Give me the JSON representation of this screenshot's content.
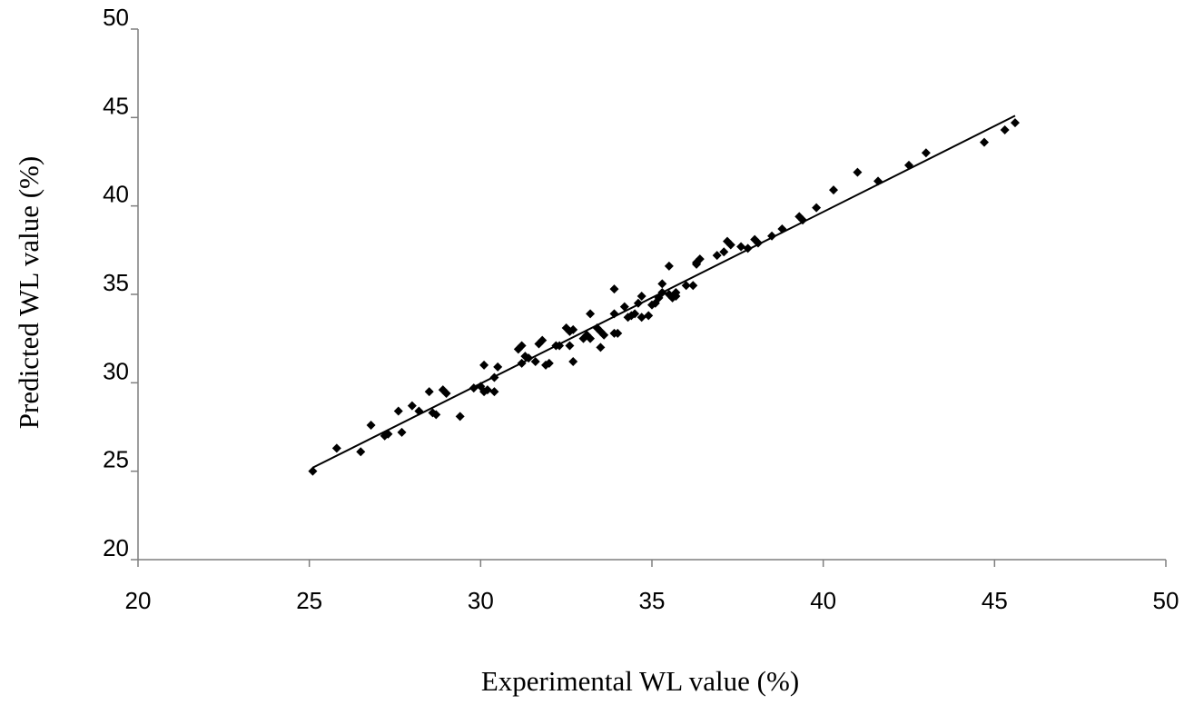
{
  "chart_data": {
    "type": "scatter",
    "title": "",
    "xlabel": "Experimental WL value (%)",
    "ylabel": "Predicted WL value (%)",
    "xlim": [
      20,
      50
    ],
    "ylim": [
      20,
      50
    ],
    "xticks": [
      "20",
      "25",
      "30",
      "35",
      "40",
      "45",
      "50"
    ],
    "yticks": [
      "20",
      "25",
      "30",
      "35",
      "40",
      "45",
      "50"
    ],
    "grid": false,
    "legend": "none",
    "marker": "diamond",
    "point_color": "#000000",
    "trendline": {
      "x": [
        25.1,
        45.6
      ],
      "y": [
        25.2,
        45.1
      ]
    },
    "points": [
      [
        25.1,
        25.0
      ],
      [
        25.8,
        26.3
      ],
      [
        26.5,
        26.1
      ],
      [
        26.8,
        27.6
      ],
      [
        27.2,
        27.0
      ],
      [
        27.3,
        27.1
      ],
      [
        27.6,
        28.4
      ],
      [
        27.7,
        27.2
      ],
      [
        28.0,
        28.7
      ],
      [
        28.2,
        28.4
      ],
      [
        28.5,
        29.5
      ],
      [
        28.6,
        28.3
      ],
      [
        28.7,
        28.2
      ],
      [
        28.9,
        29.6
      ],
      [
        29.0,
        29.4
      ],
      [
        29.4,
        28.1
      ],
      [
        29.8,
        29.7
      ],
      [
        30.0,
        29.8
      ],
      [
        30.1,
        31.0
      ],
      [
        30.1,
        29.5
      ],
      [
        30.2,
        29.6
      ],
      [
        30.4,
        30.3
      ],
      [
        30.4,
        29.5
      ],
      [
        30.5,
        30.9
      ],
      [
        31.1,
        31.9
      ],
      [
        31.2,
        32.1
      ],
      [
        31.2,
        31.1
      ],
      [
        31.3,
        31.5
      ],
      [
        31.4,
        31.4
      ],
      [
        31.6,
        31.2
      ],
      [
        31.7,
        32.2
      ],
      [
        31.8,
        32.4
      ],
      [
        31.9,
        31.0
      ],
      [
        32.0,
        31.1
      ],
      [
        32.2,
        32.1
      ],
      [
        32.3,
        32.1
      ],
      [
        32.5,
        33.1
      ],
      [
        32.6,
        32.1
      ],
      [
        32.6,
        32.9
      ],
      [
        32.7,
        33.0
      ],
      [
        32.7,
        31.2
      ],
      [
        33.0,
        32.5
      ],
      [
        33.1,
        32.7
      ],
      [
        33.2,
        32.5
      ],
      [
        33.2,
        33.9
      ],
      [
        33.4,
        33.1
      ],
      [
        33.5,
        32.0
      ],
      [
        33.5,
        32.9
      ],
      [
        33.6,
        32.7
      ],
      [
        33.9,
        33.9
      ],
      [
        33.9,
        32.8
      ],
      [
        34.0,
        32.8
      ],
      [
        33.9,
        35.3
      ],
      [
        34.2,
        34.3
      ],
      [
        34.3,
        33.7
      ],
      [
        34.4,
        33.8
      ],
      [
        34.5,
        33.9
      ],
      [
        34.6,
        34.5
      ],
      [
        34.7,
        34.9
      ],
      [
        34.7,
        33.7
      ],
      [
        34.9,
        33.8
      ],
      [
        35.0,
        34.4
      ],
      [
        35.1,
        34.5
      ],
      [
        35.2,
        34.8
      ],
      [
        35.3,
        35.1
      ],
      [
        35.3,
        35.6
      ],
      [
        35.5,
        35.0
      ],
      [
        35.5,
        36.6
      ],
      [
        35.6,
        34.8
      ],
      [
        35.7,
        35.1
      ],
      [
        35.7,
        34.9
      ],
      [
        36.0,
        35.5
      ],
      [
        36.2,
        35.5
      ],
      [
        36.3,
        36.8
      ],
      [
        36.3,
        36.7
      ],
      [
        36.4,
        37.0
      ],
      [
        36.9,
        37.2
      ],
      [
        37.1,
        37.4
      ],
      [
        37.2,
        38.0
      ],
      [
        37.3,
        37.8
      ],
      [
        37.6,
        37.7
      ],
      [
        37.8,
        37.6
      ],
      [
        38.0,
        38.1
      ],
      [
        38.1,
        37.9
      ],
      [
        38.5,
        38.3
      ],
      [
        38.8,
        38.7
      ],
      [
        39.3,
        39.4
      ],
      [
        39.4,
        39.2
      ],
      [
        39.8,
        39.9
      ],
      [
        40.3,
        40.9
      ],
      [
        41.0,
        41.9
      ],
      [
        41.6,
        41.4
      ],
      [
        42.5,
        42.3
      ],
      [
        43.0,
        43.0
      ],
      [
        44.7,
        43.6
      ],
      [
        45.3,
        44.3
      ],
      [
        45.6,
        44.7
      ]
    ]
  }
}
